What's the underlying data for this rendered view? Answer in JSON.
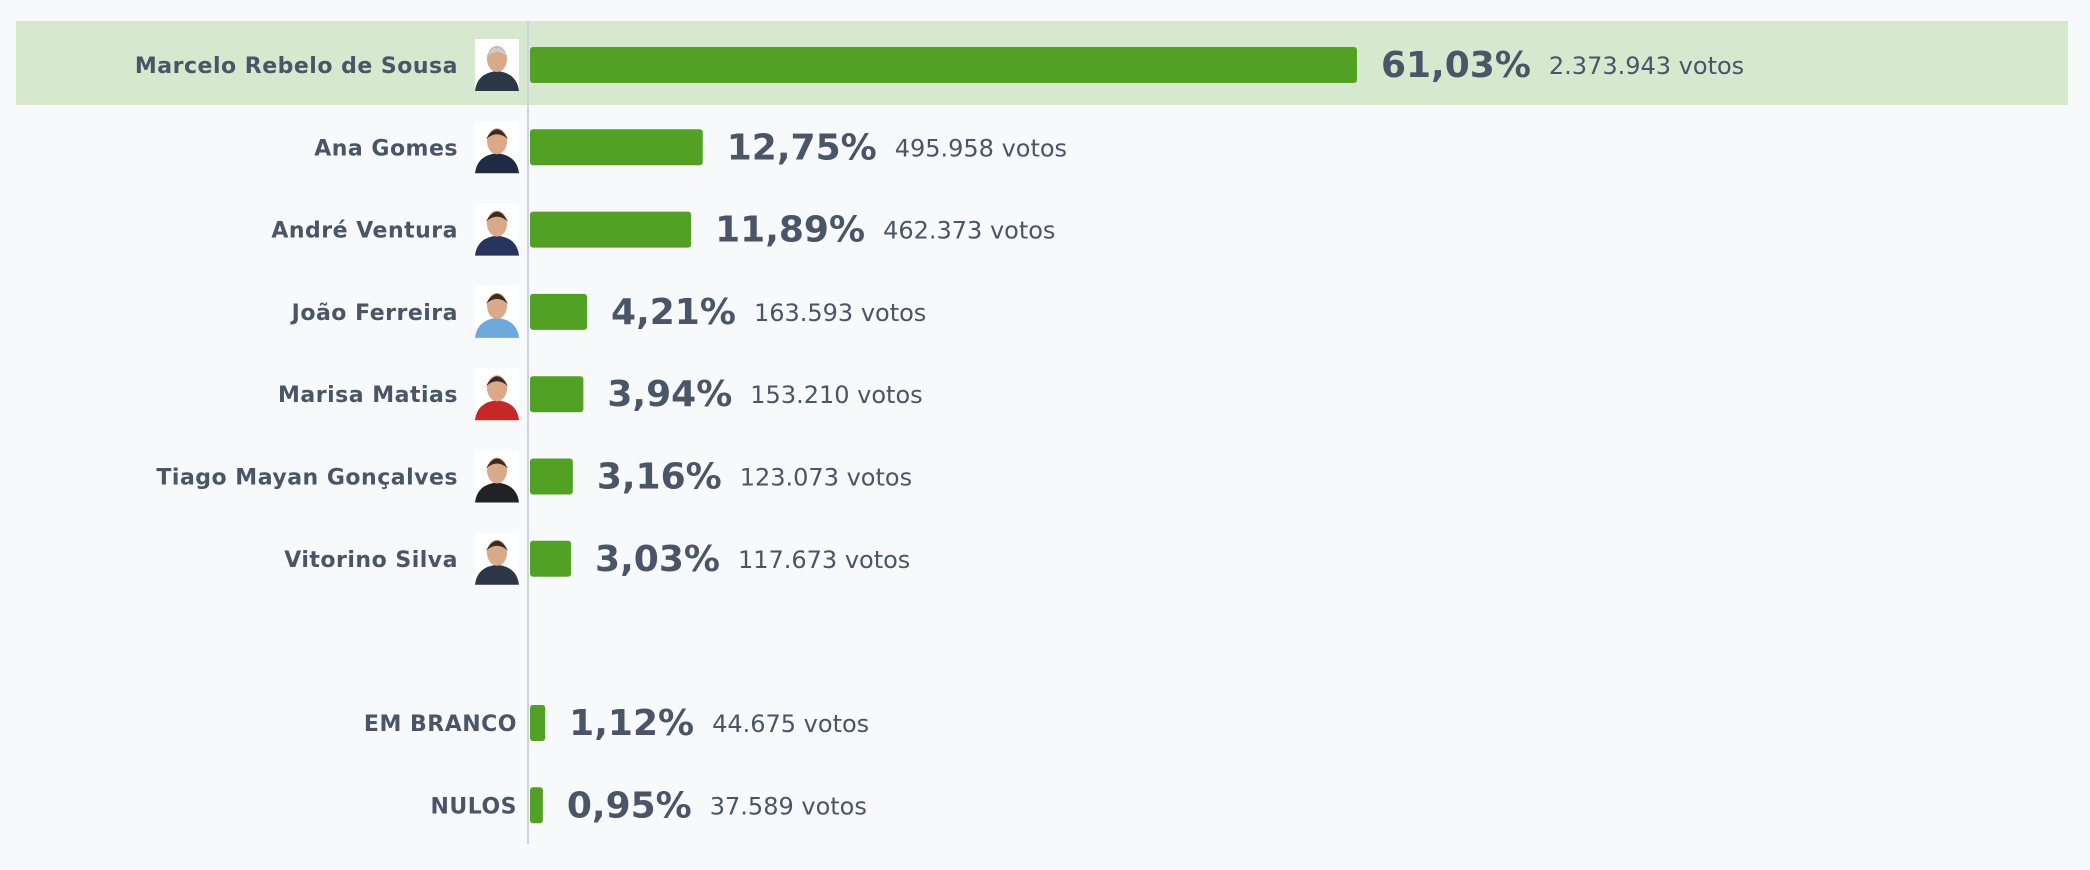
{
  "chart_data": [
    {
      "type": "bar",
      "orientation": "horizontal",
      "photos": true,
      "highlight": 0,
      "color": "#52a124",
      "xlim": [
        0,
        100
      ],
      "categories": [
        "Marcelo Rebelo de Sousa",
        "Ana Gomes",
        "André Ventura",
        "João Ferreira",
        "Marisa Matias",
        "Tiago Mayan Gonçalves",
        "Vitorino Silva"
      ],
      "values": [
        61.03,
        12.75,
        11.89,
        4.21,
        3.94,
        3.16,
        3.03
      ],
      "value_labels": [
        "61,03%",
        "12,75%",
        "11,89%",
        "4,21%",
        "3,94%",
        "3,16%",
        "3,03%"
      ],
      "votes": [
        "2.373.943 votos",
        "495.958 votos",
        "462.373 votos",
        "163.593 votos",
        "153.210 votos",
        "123.073 votos",
        "117.673 votos"
      ]
    },
    {
      "type": "bar",
      "orientation": "horizontal",
      "photos": false,
      "color": "#52a124",
      "xlim": [
        0,
        100
      ],
      "categories": [
        "EM BRANCO",
        "NULOS"
      ],
      "values": [
        1.12,
        0.95
      ],
      "value_labels": [
        "1,12%",
        "0,95%"
      ],
      "votes": [
        "44.675 votos",
        "37.589 votos"
      ]
    }
  ]
}
